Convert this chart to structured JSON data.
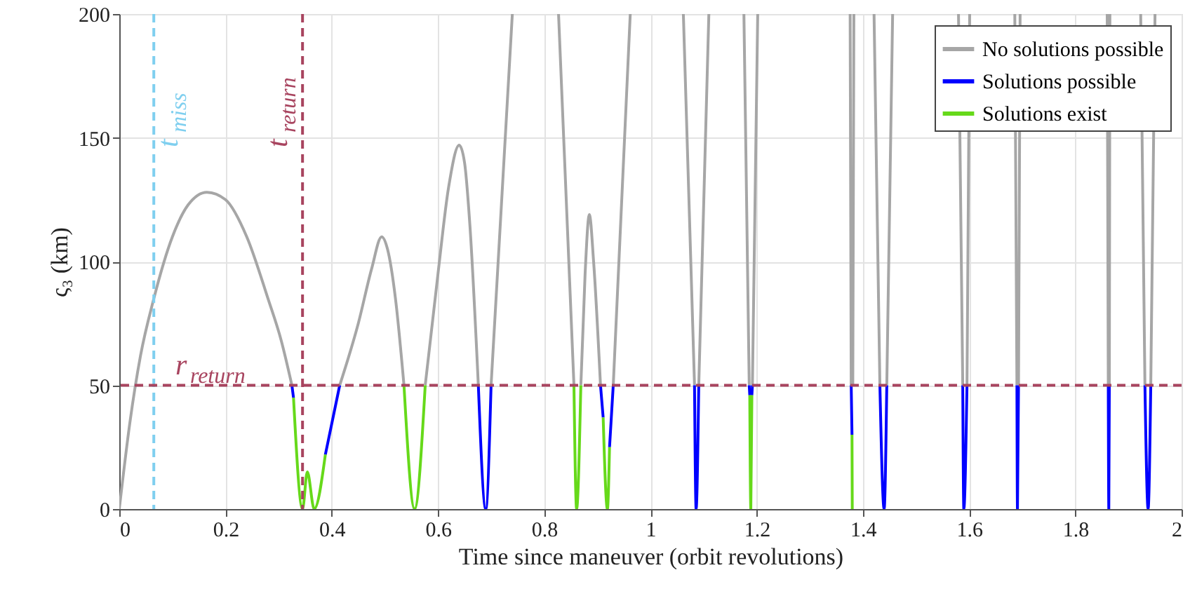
{
  "chart_data": {
    "type": "line",
    "xlabel": "Time since maneuver (orbit revolutions)",
    "ylabel": "ς₃ (km)",
    "xlim": [
      0,
      2
    ],
    "xticks": [
      0,
      0.2,
      0.4,
      0.6,
      0.8,
      1,
      1.2,
      1.4,
      1.6,
      1.8,
      2
    ],
    "ylim": [
      0,
      200
    ],
    "yticks": [
      0,
      50,
      100,
      150,
      200
    ],
    "grid": true,
    "legend": "top right",
    "line_style": "solid",
    "marker": "none",
    "ref_lines": [
      {
        "axis": "x",
        "value": 0.065,
        "label": "t$_{miss}$",
        "color": "#7fcfef",
        "line_style": "dashed"
      },
      {
        "axis": "x",
        "value": 0.345,
        "label": "t$_{return}$",
        "color": "#a8445f",
        "line_style": "dashed"
      },
      {
        "axis": "y",
        "value": 50,
        "label": "r$_{return}$",
        "color": "#a8445f",
        "line_style": "dashed"
      }
    ],
    "series": [
      {
        "name": "No solutions possible",
        "color": "#a6a6a6",
        "x": [
          0,
          0.02,
          0.04,
          0.065,
          0.1,
          0.13,
          0.165,
          0.2,
          0.24,
          0.28,
          0.305,
          0.325,
          0.37,
          0.415,
          0.45,
          0.475,
          0.494,
          0.505,
          0.52,
          0.536,
          0.556,
          0.576,
          0.6,
          0.62,
          0.64,
          0.65,
          0.66,
          0.676,
          0.69,
          0.7,
          0.74,
          0.78,
          0.827,
          0.856,
          0.862,
          0.869,
          0.877,
          0.885,
          0.893,
          0.906,
          0.918,
          0.93,
          0.962,
          1.0,
          1.062,
          1.083,
          1.087,
          1.091,
          1.11,
          1.15,
          1.176,
          1.186,
          1.189,
          1.192,
          1.202,
          1.3,
          1.376,
          1.378,
          1.38,
          1.381,
          1.383,
          1.4,
          1.421,
          1.432,
          1.44,
          1.445,
          1.456,
          1.5,
          1.58,
          1.588,
          1.592,
          1.596,
          1.601,
          1.65,
          1.686,
          1.69,
          1.691,
          1.693,
          1.696,
          1.8,
          1.86,
          1.862,
          1.863,
          1.864,
          1.865,
          1.9,
          1.923,
          1.931,
          1.937,
          1.942,
          1.95
        ],
        "values": [
          0,
          35,
          62,
          85,
          110,
          123,
          128,
          125,
          110,
          85,
          68,
          50,
          null,
          50,
          75,
          97,
          110,
          105,
          85,
          50,
          null,
          50,
          95,
          130,
          147,
          140,
          115,
          50,
          null,
          50,
          200,
          null,
          200,
          50,
          null,
          50,
          95,
          119,
          100,
          50,
          null,
          50,
          200,
          null,
          200,
          50,
          null,
          50,
          200,
          null,
          200,
          50,
          null,
          50,
          200,
          null,
          200,
          50,
          null,
          50,
          200,
          null,
          200,
          50,
          null,
          50,
          200,
          null,
          200,
          50,
          null,
          50,
          200,
          null,
          200,
          50,
          null,
          50,
          200,
          null,
          200,
          50,
          null,
          50,
          200,
          null,
          200,
          50,
          null,
          50,
          200
        ]
      },
      {
        "name": "Solutions possible",
        "color": "#0000ff",
        "x": [
          0.325,
          0.328,
          0.36,
          0.388,
          0.415,
          0.5,
          0.676,
          0.69,
          0.7,
          0.8,
          0.906,
          0.911,
          0.917,
          0.923,
          0.93,
          1.0,
          1.083,
          1.086,
          1.091,
          1.15,
          1.186,
          1.187,
          1.189,
          1.191,
          1.192,
          1.3,
          1.378,
          1.3795,
          1.4,
          1.432,
          1.44,
          1.445,
          1.5,
          1.588,
          1.59,
          1.596,
          1.65,
          1.69,
          1.691,
          1.693,
          1.8,
          1.862,
          1.863,
          1.864,
          1.9,
          1.931,
          1.937,
          1.942
        ],
        "values": [
          50,
          45,
          null,
          22,
          50,
          null,
          50,
          0,
          50,
          null,
          50,
          37,
          null,
          25,
          50,
          null,
          50,
          0,
          50,
          null,
          50,
          46,
          null,
          46,
          50,
          null,
          50,
          30,
          null,
          50,
          0,
          50,
          null,
          50,
          0,
          50,
          null,
          50,
          0,
          50,
          null,
          50,
          0,
          50,
          null,
          50,
          0,
          50
        ]
      },
      {
        "name": "Solutions exist",
        "color": "#66d91a",
        "x": [
          0.328,
          0.345,
          0.354,
          0.367,
          0.388,
          0.45,
          0.536,
          0.556,
          0.576,
          0.7,
          0.856,
          0.861,
          0.869,
          0.89,
          0.911,
          0.919,
          0.923,
          1.0,
          1.187,
          1.189,
          1.191,
          1.3,
          1.3795,
          1.38
        ],
        "values": [
          45,
          0,
          15,
          0,
          22,
          null,
          50,
          0,
          50,
          null,
          50,
          0,
          50,
          null,
          37,
          0,
          25,
          null,
          46,
          0,
          46,
          null,
          30,
          0
        ]
      }
    ]
  }
}
